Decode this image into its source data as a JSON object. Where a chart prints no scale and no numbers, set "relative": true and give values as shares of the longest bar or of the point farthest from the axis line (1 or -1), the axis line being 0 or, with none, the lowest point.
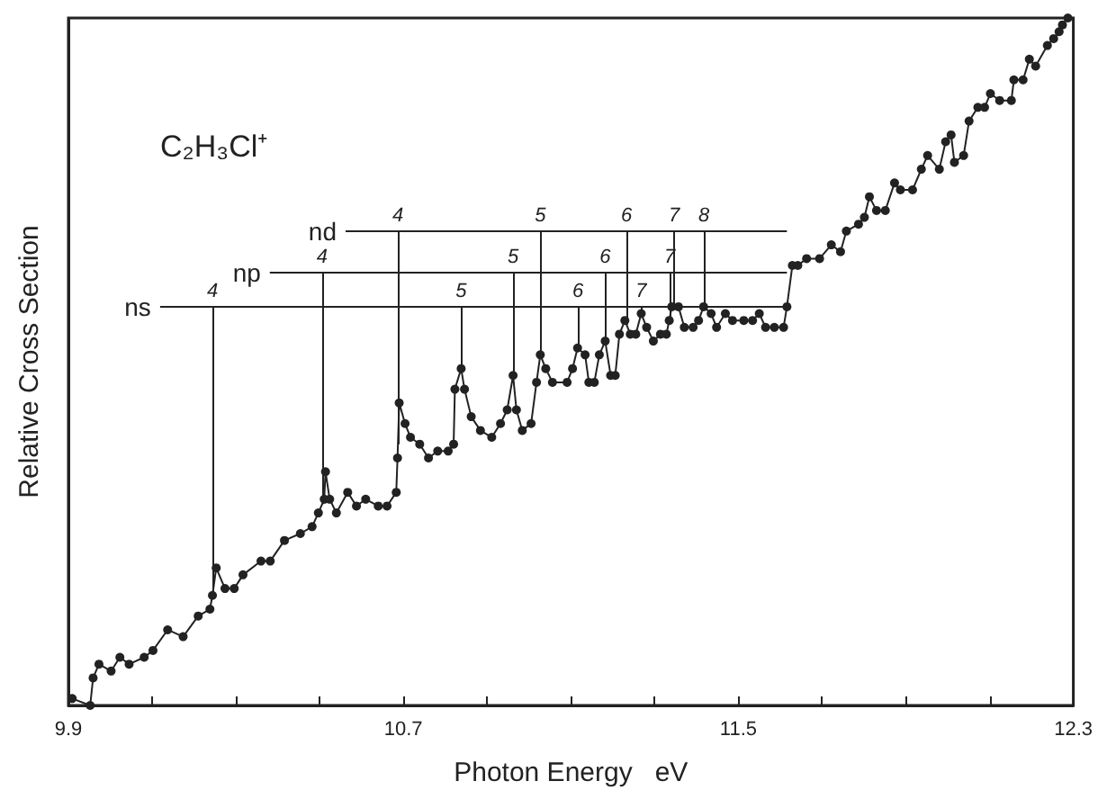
{
  "chart_data": {
    "type": "line",
    "title": "C₂H₃Cl⁺",
    "xlabel": "Photon Energy   eV",
    "ylabel": "Relative Cross Section",
    "relative": true,
    "marker": "circle",
    "line_style": "solid",
    "grid": false,
    "ref_lines": [
      {
        "axis": "y",
        "value": 0.58,
        "label": "ns"
      },
      {
        "axis": "y",
        "value": 0.63,
        "label": "np"
      },
      {
        "axis": "y",
        "value": 0.69,
        "label": "nd"
      }
    ],
    "xlim": [
      9.9,
      12.3
    ],
    "xticks": [
      9.9,
      {
        "value": 10.1,
        "label": null
      },
      {
        "value": 10.3,
        "label": null
      },
      {
        "value": 10.5,
        "label": null
      },
      10.7,
      {
        "value": 10.9,
        "label": null
      },
      {
        "value": 11.1,
        "label": null
      },
      {
        "value": 11.3,
        "label": null
      },
      11.5,
      {
        "value": 11.7,
        "label": null
      },
      {
        "value": 11.9,
        "label": null
      },
      {
        "value": 12.1,
        "label": null
      },
      12.3
    ],
    "annotations": [
      {
        "text": "4",
        "x": 10.244,
        "y": 0.58
      },
      {
        "text": "4",
        "x": 10.506,
        "y": 0.63
      },
      {
        "text": "4",
        "x": 10.687,
        "y": 0.69
      },
      {
        "text": "5",
        "x": 10.838,
        "y": 0.58
      },
      {
        "text": "5",
        "x": 10.962,
        "y": 0.63
      },
      {
        "text": "5",
        "x": 11.027,
        "y": 0.69
      },
      {
        "text": "6",
        "x": 11.117,
        "y": 0.58
      },
      {
        "text": "6",
        "x": 11.182,
        "y": 0.63
      },
      {
        "text": "6",
        "x": 11.233,
        "y": 0.69
      },
      {
        "text": "7",
        "x": 11.268,
        "y": 0.58
      },
      {
        "text": "7",
        "x": 11.336,
        "y": 0.63
      },
      {
        "text": "7",
        "x": 11.347,
        "y": 0.69
      },
      {
        "text": "8",
        "x": 11.418,
        "y": 0.69
      }
    ],
    "series": [
      {
        "color": "#222222",
        "x": [
          9.909,
          9.952,
          9.959,
          9.973,
          10.002,
          10.023,
          10.045,
          10.081,
          10.102,
          10.137,
          10.174,
          10.21,
          10.238,
          10.244,
          10.253,
          10.274,
          10.296,
          10.317,
          10.36,
          10.382,
          10.416,
          10.454,
          10.482,
          10.497,
          10.511,
          10.514,
          10.524,
          10.54,
          10.567,
          10.588,
          10.61,
          10.64,
          10.661,
          10.683,
          10.686,
          10.69,
          10.704,
          10.717,
          10.739,
          10.76,
          10.782,
          10.807,
          10.82,
          10.823,
          10.838,
          10.846,
          10.862,
          10.884,
          10.911,
          10.932,
          10.948,
          10.962,
          10.97,
          10.984,
          11.005,
          11.018,
          11.027,
          11.04,
          11.056,
          11.091,
          11.104,
          11.116,
          11.134,
          11.143,
          11.156,
          11.168,
          11.182,
          11.195,
          11.206,
          11.216,
          11.229,
          11.242,
          11.255,
          11.268,
          11.281,
          11.297,
          11.314,
          11.328,
          11.335,
          11.341,
          11.357,
          11.371,
          11.392,
          11.405,
          11.417,
          11.435,
          11.448,
          11.469,
          11.486,
          11.513,
          11.534,
          11.55,
          11.565,
          11.586,
          11.608,
          11.616,
          11.629,
          11.642,
          11.663,
          11.694,
          11.722,
          11.744,
          11.758,
          11.787,
          11.801,
          11.813,
          11.83,
          11.851,
          11.873,
          11.887,
          11.916,
          11.937,
          11.952,
          11.98,
          11.995,
          12.008,
          12.016,
          12.038,
          12.051,
          12.072,
          12.088,
          12.102,
          12.124,
          12.152,
          12.158,
          12.18,
          12.195,
          12.21,
          12.238,
          12.253,
          12.266,
          12.274,
          12.287
        ],
        "values": [
          0.01,
          0,
          0.04,
          0.06,
          0.05,
          0.07,
          0.06,
          0.07,
          0.08,
          0.11,
          0.1,
          0.13,
          0.14,
          0.16,
          0.2,
          0.17,
          0.17,
          0.19,
          0.21,
          0.21,
          0.24,
          0.25,
          0.26,
          0.28,
          0.3,
          0.34,
          0.3,
          0.28,
          0.31,
          0.29,
          0.3,
          0.29,
          0.29,
          0.31,
          0.36,
          0.44,
          0.41,
          0.39,
          0.38,
          0.36,
          0.37,
          0.37,
          0.38,
          0.46,
          0.49,
          0.46,
          0.42,
          0.4,
          0.39,
          0.41,
          0.43,
          0.48,
          0.43,
          0.4,
          0.41,
          0.47,
          0.51,
          0.49,
          0.47,
          0.47,
          0.49,
          0.52,
          0.51,
          0.47,
          0.47,
          0.51,
          0.53,
          0.48,
          0.48,
          0.54,
          0.56,
          0.54,
          0.54,
          0.57,
          0.55,
          0.53,
          0.54,
          0.54,
          0.56,
          0.58,
          0.58,
          0.55,
          0.55,
          0.56,
          0.58,
          0.57,
          0.55,
          0.57,
          0.56,
          0.56,
          0.56,
          0.57,
          0.55,
          0.55,
          0.55,
          0.58,
          0.64,
          0.64,
          0.65,
          0.65,
          0.67,
          0.66,
          0.69,
          0.7,
          0.71,
          0.74,
          0.72,
          0.72,
          0.76,
          0.75,
          0.75,
          0.78,
          0.8,
          0.78,
          0.82,
          0.83,
          0.79,
          0.8,
          0.85,
          0.87,
          0.87,
          0.89,
          0.88,
          0.88,
          0.91,
          0.91,
          0.94,
          0.93,
          0.96,
          0.97,
          0.98,
          0.99,
          1
        ]
      }
    ]
  }
}
